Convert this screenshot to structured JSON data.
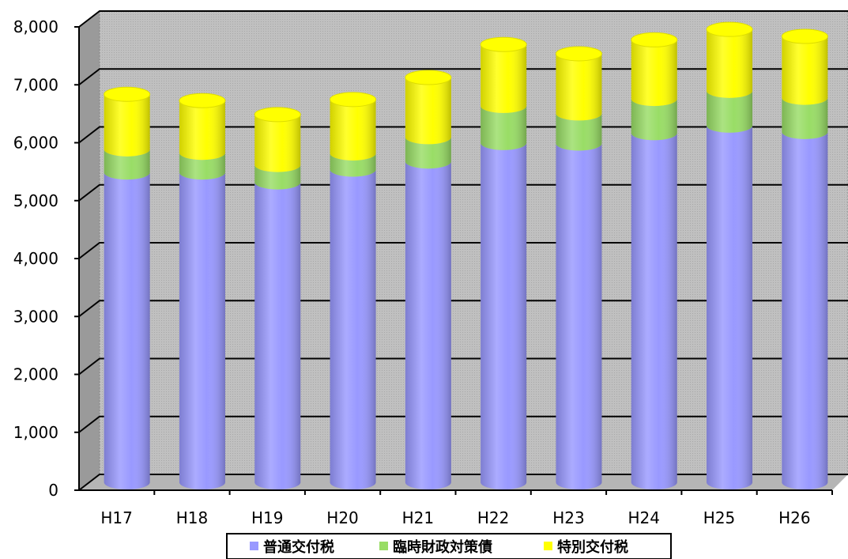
{
  "chart_data": {
    "type": "bar",
    "stacked": true,
    "style": "3d-cylinder",
    "categories": [
      "H17",
      "H18",
      "H19",
      "H20",
      "H21",
      "H22",
      "H23",
      "H24",
      "H25",
      "H26"
    ],
    "series": [
      {
        "name": "普通交付税",
        "color": "#9999ff",
        "values": [
          5350,
          5350,
          5180,
          5400,
          5540,
          5860,
          5850,
          6030,
          6160,
          6050
        ]
      },
      {
        "name": "臨時財政対策債",
        "color": "#99dd66",
        "values": [
          400,
          340,
          300,
          280,
          420,
          640,
          520,
          590,
          600,
          590
        ]
      },
      {
        "name": "特別交付税",
        "color": "#ffff00",
        "values": [
          950,
          900,
          870,
          930,
          1030,
          1060,
          1030,
          1020,
          1060,
          1060
        ]
      }
    ],
    "ylim": [
      0,
      8000
    ],
    "yticks": [
      "0",
      "1,000",
      "2,000",
      "3,000",
      "4,000",
      "5,000",
      "6,000",
      "7,000",
      "8,000"
    ],
    "ytick_values": [
      0,
      1000,
      2000,
      3000,
      4000,
      5000,
      6000,
      7000,
      8000
    ],
    "grid": true,
    "legend_position": "bottom",
    "title": "",
    "xlabel": "",
    "ylabel": ""
  }
}
